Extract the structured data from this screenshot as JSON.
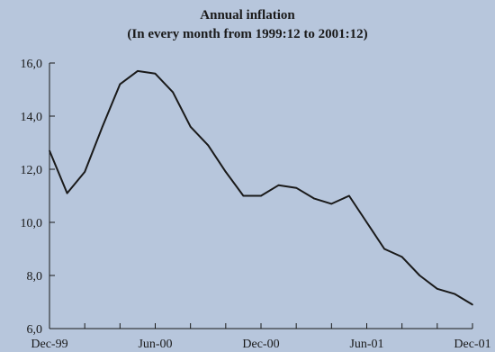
{
  "chart_data": {
    "type": "line",
    "title": "Annual inflation",
    "subtitle": "(In every month from 1999:12 to 2001:12)",
    "xlabel": "",
    "ylabel": "",
    "x": [
      "1999-12",
      "2000-01",
      "2000-02",
      "2000-03",
      "2000-04",
      "2000-05",
      "2000-06",
      "2000-07",
      "2000-08",
      "2000-09",
      "2000-10",
      "2000-11",
      "2000-12",
      "2001-01",
      "2001-02",
      "2001-03",
      "2001-04",
      "2001-05",
      "2001-06",
      "2001-07",
      "2001-08",
      "2001-09",
      "2001-10",
      "2001-11",
      "2001-12"
    ],
    "series": [
      {
        "values": [
          12.7,
          11.1,
          11.9,
          13.6,
          15.2,
          15.7,
          15.6,
          14.9,
          13.6,
          12.9,
          11.9,
          11.0,
          11.0,
          11.4,
          11.3,
          10.9,
          10.7,
          11.0,
          10.0,
          9.0,
          8.7,
          8.0,
          7.5,
          7.3,
          6.9
        ]
      }
    ],
    "x_tick_labels": [
      "Dec-99",
      "Jun-00",
      "Dec-00",
      "Jun-01",
      "Dec-01"
    ],
    "y_tick_labels": [
      "6,0",
      "8,0",
      "10,0",
      "12,0",
      "14,0",
      "16,0"
    ],
    "y_ticks": [
      6,
      8,
      10,
      12,
      14,
      16
    ],
    "ylim": [
      6,
      16
    ],
    "grid": false,
    "legend": "none",
    "colors": {
      "line": "#1a1a1a",
      "background": "#b7c6dc",
      "axis": "#1a1a1a"
    }
  }
}
